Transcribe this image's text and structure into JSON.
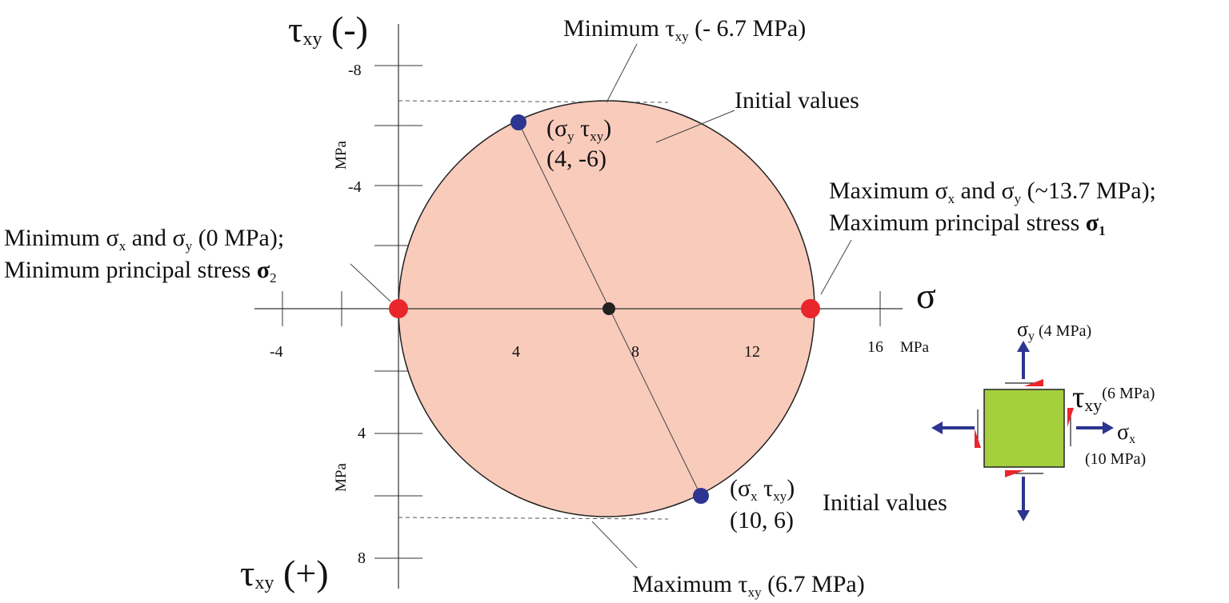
{
  "chart_data": {
    "type": "diagram",
    "axes": {
      "sigma_label": "σ",
      "tau_top_label": {
        "symbol": "τ",
        "subscript": "xy",
        "sign": " (-)"
      },
      "tau_bottom_label": {
        "symbol": "τ",
        "subscript": "xy",
        "sign": " (+)"
      },
      "sigma_ticks": [
        "-4",
        "4",
        "8",
        "12",
        "16"
      ],
      "sigma_unit": "MPa",
      "tau_ticks": [
        "-8",
        "-4",
        "4",
        "8"
      ],
      "tau_unit_upper": "MPa",
      "tau_unit_lower": "MPa"
    },
    "circle": {
      "center": [
        7,
        0
      ],
      "radius": 6.7,
      "fill": "#f9cbbb"
    },
    "points": [
      {
        "name": "sigma-y-tau-xy-point",
        "sigma": 4,
        "tau": -6,
        "color": "#2d3590"
      },
      {
        "name": "sigma-x-tau-xy-point",
        "sigma": 10,
        "tau": 6,
        "color": "#2d3590"
      },
      {
        "name": "sigma-min-point",
        "sigma": 0,
        "tau": 0,
        "color": "#e8262b"
      },
      {
        "name": "sigma-max-point",
        "sigma": 13.7,
        "tau": 0,
        "color": "#e8262b"
      },
      {
        "name": "circle-center-point",
        "sigma": 7,
        "tau": 0,
        "color": "#222222"
      }
    ],
    "annotations": {
      "min_tau": {
        "pre": "Minimum ",
        "sym": "τ",
        "sub": "xy",
        "post": " (- 6.7 MPa)"
      },
      "max_tau": {
        "pre": "Maximum ",
        "sym": "τ",
        "sub": "xy",
        "post": " (6.7 MPa)"
      },
      "initial_values_top": "Initial values",
      "initial_values_bottom": "Initial values",
      "point_top_label": {
        "open": "(",
        "s1": "σ",
        "s1sub": "y",
        "s2": " τ",
        "s2sub": "xy",
        "close": ")"
      },
      "point_top_coords": "(4, -6)",
      "point_bottom_label": {
        "open": "(",
        "s1": "σ",
        "s1sub": "x",
        "s2": " τ",
        "s2sub": "xy",
        "close": ")"
      },
      "point_bottom_coords": "(10, 6)",
      "max_sigma_line1": {
        "pre": "Maximum ",
        "s1": "σ",
        "s1sub": "x",
        "mid": " and ",
        "s2": "σ",
        "s2sub": "y",
        "post": " (~13.7 MPa);"
      },
      "max_sigma_line2": {
        "pre": "Maximum principal stress ",
        "sym": "σ",
        "sub": "1"
      },
      "min_sigma_line1": {
        "pre": "Minimum ",
        "s1": "σ",
        "s1sub": "x",
        "mid": " and ",
        "s2": "σ",
        "s2sub": "y",
        "post": " (0 MPa);"
      },
      "min_sigma_line2": {
        "pre": "Minimum principal stress ",
        "sym": "σ",
        "sub": "2"
      }
    },
    "stress_element": {
      "sigma_y": {
        "sym": "σ",
        "sub": "y",
        "value": " (4 MPa)"
      },
      "tau_xy": {
        "sym": "τ",
        "sub": "xy",
        "value": "(6 MPa)"
      },
      "sigma_x": {
        "sym": "σ",
        "sub": "x",
        "value": "(10 MPa)"
      },
      "box_color": "#a6cf3e",
      "arrow_color": "#2d3590",
      "shear_color": "#e8262b"
    }
  }
}
